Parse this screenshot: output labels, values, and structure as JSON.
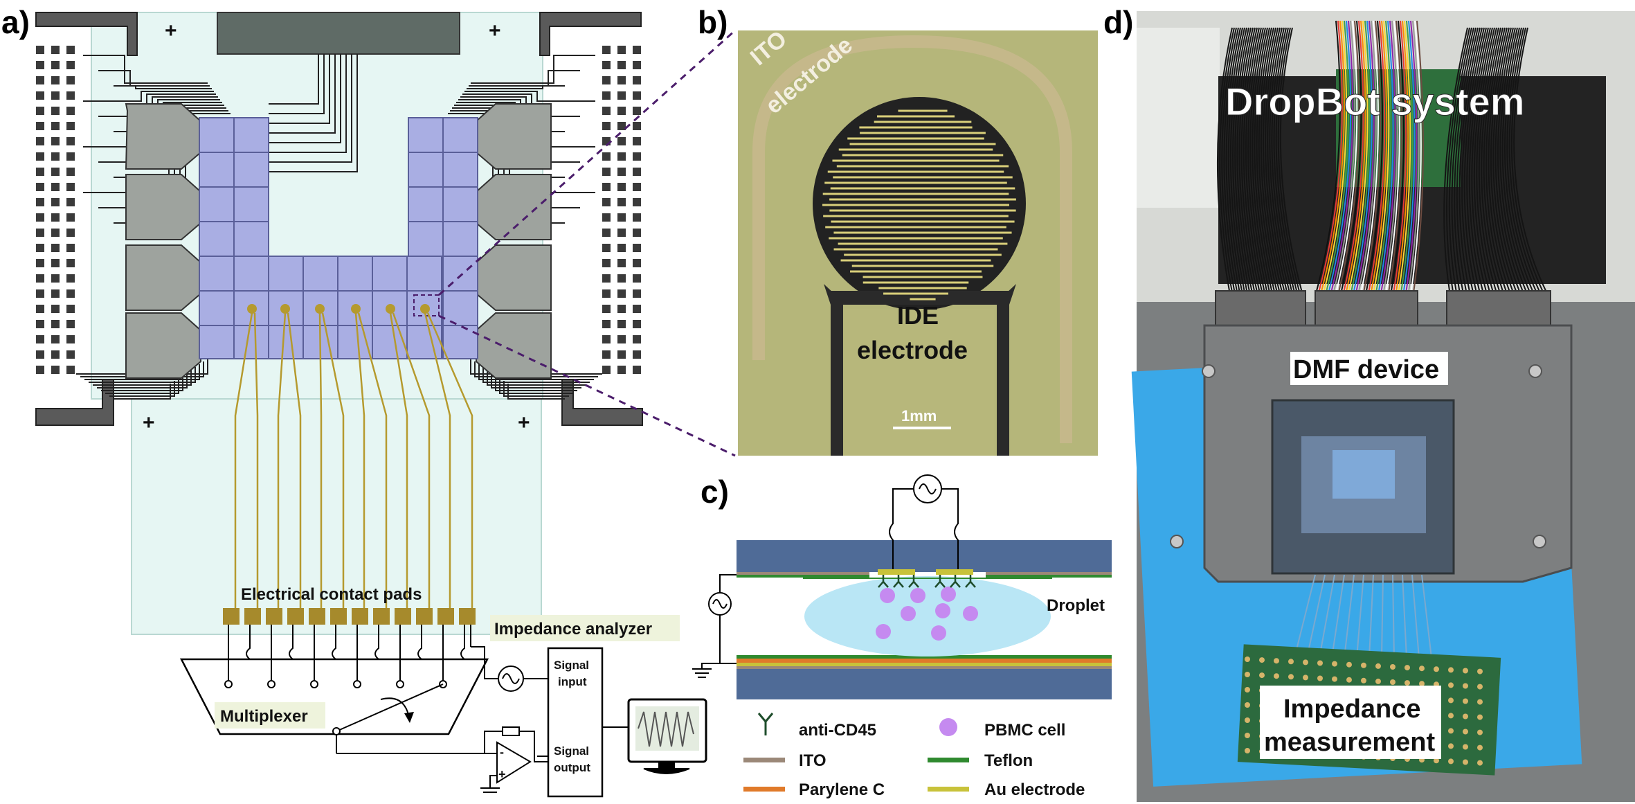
{
  "panels": {
    "a": "a)",
    "b": "b)",
    "c": "c)",
    "d": "d)"
  },
  "panel_a": {
    "contact_pads_label": "Electrical contact pads",
    "impedance_analyzer_label": "Impedance analyzer",
    "multiplexer_label": "Multiplexer",
    "signal_input_line1": "Signal",
    "signal_input_line2": "input",
    "signal_output_line1": "Signal",
    "signal_output_line2": "output",
    "plus_sign": "+"
  },
  "panel_b": {
    "ito_line1": "ITO",
    "ito_line2": "electrode",
    "ide_line1": "IDE",
    "ide_line2": "electrode",
    "scale": "1mm"
  },
  "panel_c": {
    "droplet": "Droplet",
    "legend": [
      {
        "label": "anti-CD45",
        "symbol": "antibody",
        "color": "#1e4d2b"
      },
      {
        "label": "PBMC cell",
        "symbol": "circle",
        "color": "#c58af0"
      },
      {
        "label": "ITO",
        "symbol": "bar",
        "color": "#9b8878"
      },
      {
        "label": "Teflon",
        "symbol": "bar",
        "color": "#2f8a2f"
      },
      {
        "label": "Parylene C",
        "symbol": "bar",
        "color": "#e07a2a"
      },
      {
        "label": "Au electrode",
        "symbol": "bar",
        "color": "#c8c23a"
      }
    ]
  },
  "panel_d": {
    "system_label": "DropBot system",
    "device_label": "DMF device",
    "measurement_line1": "Impedance",
    "measurement_line2": "measurement"
  },
  "colors": {
    "electrode": "#a9aee3",
    "reservoir": "#9ea39e",
    "pad": "#3a3a3a",
    "gold": "#b59a2e",
    "substrate": "#e6f6f3",
    "glass": "#4f6b97",
    "droplet": "#b9e6f5"
  }
}
